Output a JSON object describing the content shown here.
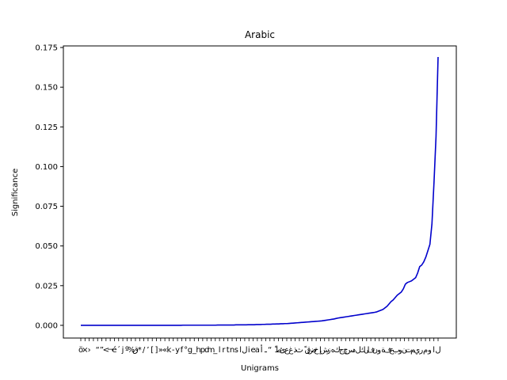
{
  "chart_data": {
    "type": "line",
    "title": "Arabic",
    "xlabel": "Unigrams",
    "ylabel": "Significance",
    "ylim": [
      -0.008,
      0.176
    ],
    "yticks": [
      "0.000",
      "0.025",
      "0.050",
      "0.075",
      "0.100",
      "0.125",
      "0.150",
      "0.175"
    ],
    "ytick_values": [
      0,
      0.025,
      0.05,
      0.075,
      0.1,
      0.125,
      0.15,
      0.175
    ],
    "grid": false,
    "series": [
      {
        "color": "#0000cc",
        "values": [
          0,
          0,
          0,
          0,
          0,
          0,
          0,
          0,
          0,
          0,
          0,
          0,
          0,
          0,
          0,
          0,
          0,
          0,
          0,
          0,
          0,
          0,
          0,
          0,
          0,
          0,
          0,
          0,
          0,
          0,
          0,
          0,
          0,
          0,
          0,
          0,
          0,
          0,
          0,
          0,
          0,
          0,
          0,
          0,
          0,
          0,
          0,
          0,
          0,
          0,
          0.0001,
          0.0001,
          0.0001,
          0.0001,
          0.0001,
          0.0001,
          0.0001,
          0.0001,
          0.0001,
          0.0001,
          0.0001,
          0.0001,
          0.0001,
          0.0001,
          0.0001,
          0.0001,
          0.0001,
          0.0002,
          0.0002,
          0.0002,
          0.0002,
          0.0002,
          0.0002,
          0.0002,
          0.0002,
          0.0002,
          0.0003,
          0.0003,
          0.0003,
          0.0003,
          0.0003,
          0.0003,
          0.0004,
          0.0004,
          0.0004,
          0.0004,
          0.0005,
          0.0005,
          0.0005,
          0.0006,
          0.0006,
          0.0007,
          0.0007,
          0.0007,
          0.0008,
          0.0008,
          0.0009,
          0.0009,
          0.001,
          0.001,
          0.0011,
          0.0011,
          0.0012,
          0.0013,
          0.0014,
          0.0015,
          0.0016,
          0.0017,
          0.0018,
          0.0019,
          0.002,
          0.0021,
          0.0022,
          0.0023,
          0.0024,
          0.0025,
          0.0026,
          0.0027,
          0.0028,
          0.003,
          0.0032,
          0.0034,
          0.0036,
          0.0038,
          0.004,
          0.0043,
          0.0046,
          0.0048,
          0.005,
          0.0052,
          0.0054,
          0.0056,
          0.0058,
          0.006,
          0.0062,
          0.0064,
          0.0066,
          0.0068,
          0.007,
          0.0072,
          0.0074,
          0.0076,
          0.0078,
          0.008,
          0.0082,
          0.0085,
          0.009,
          0.0095,
          0.01,
          0.011,
          0.012,
          0.0135,
          0.015,
          0.016,
          0.0175,
          0.019,
          0.02,
          0.021,
          0.023,
          0.026,
          0.027,
          0.0275,
          0.028,
          0.029,
          0.03,
          0.033,
          0.037,
          0.038,
          0.04,
          0.043,
          0.047,
          0.051,
          0.064,
          0.09,
          0.119,
          0.169
        ]
      }
    ],
    "xtick_labels": [
      "ö",
      "×",
      "›",
      "‌",
      "“",
      "”",
      "<",
      "¬",
      "é",
      "´",
      "j",
      "º",
      "%",
      "ق",
      "*",
      "/",
      "’",
      "[",
      "]",
      "»",
      "«",
      "k",
      "-",
      "y",
      "f",
      "°",
      "g",
      "_",
      "h",
      "p",
      "d",
      "m",
      "_",
      "l",
      "r",
      "t",
      "n",
      "s",
      "ا",
      "ل",
      "i",
      "e",
      "a",
      "أ",
      "ـ",
      "“",
      "ّ",
      "ط",
      "ئ",
      "ع",
      "غ",
      "ذ",
      "ث",
      "ً",
      "ق",
      "ض",
      "خ",
      "إ",
      "ش",
      "ز",
      "ه",
      "ك",
      "ج",
      "ح",
      "س",
      "د",
      "ل",
      "ك",
      "ل",
      "ف",
      "ن",
      "و",
      "ة",
      "ف",
      "ع",
      "ب",
      "و",
      "ن",
      "ت",
      "م",
      "ي",
      "ر",
      "م",
      "و",
      "ا",
      "ل"
    ]
  }
}
